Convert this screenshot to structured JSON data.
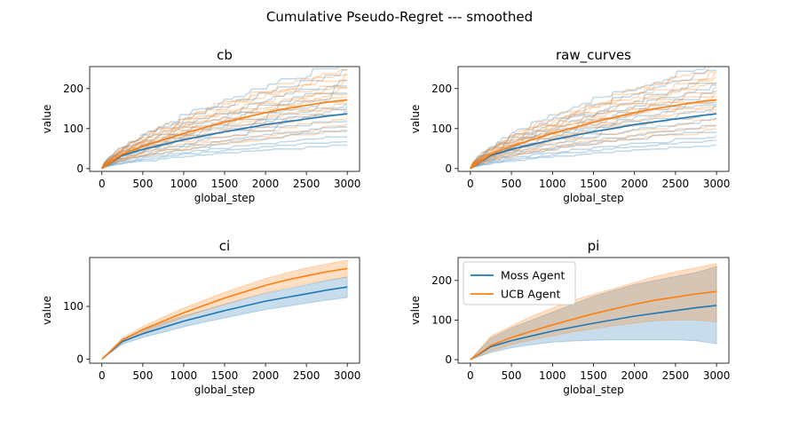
{
  "suptitle": "Cumulative Pseudo-Regret --- smoothed",
  "colors": {
    "Moss Agent": "#1f77b4",
    "UCB Agent": "#ff7f0e"
  },
  "chart_data": [
    {
      "type": "line",
      "title": "cb",
      "xlabel": "global_step",
      "ylabel": "value",
      "xlim": [
        -150,
        3150
      ],
      "ylim": [
        -7,
        255
      ],
      "xticks": [
        0,
        500,
        1000,
        1500,
        2000,
        2500,
        3000
      ],
      "yticks": [
        0,
        100,
        200
      ],
      "x": [
        0,
        250,
        500,
        750,
        1000,
        1250,
        1500,
        1750,
        2000,
        2250,
        2500,
        2750,
        3000
      ],
      "series": [
        {
          "name": "Moss Agent",
          "values": [
            0,
            33,
            48,
            60,
            72,
            82,
            92,
            101,
            110,
            117,
            124,
            131,
            137
          ]
        },
        {
          "name": "UCB Agent",
          "values": [
            0,
            36,
            56,
            72,
            88,
            102,
            116,
            128,
            140,
            150,
            158,
            166,
            172
          ]
        }
      ],
      "draws": [
        {
          "name": "Moss Agent",
          "finals": [
            245,
            225,
            205,
            190,
            175,
            160,
            150,
            140,
            130,
            115,
            100,
            90,
            75,
            65,
            55
          ]
        },
        {
          "name": "UCB Agent",
          "finals": [
            235,
            225,
            215,
            205,
            195,
            185,
            175,
            170,
            160,
            150,
            140,
            130,
            115,
            100,
            90
          ]
        }
      ]
    },
    {
      "type": "line",
      "title": "raw_curves",
      "xlabel": "global_step",
      "ylabel": "value",
      "xlim": [
        -150,
        3150
      ],
      "ylim": [
        -7,
        255
      ],
      "xticks": [
        0,
        500,
        1000,
        1500,
        2000,
        2500,
        3000
      ],
      "yticks": [
        0,
        100,
        200
      ],
      "x": [
        0,
        250,
        500,
        750,
        1000,
        1250,
        1500,
        1750,
        2000,
        2250,
        2500,
        2750,
        3000
      ],
      "series": [
        {
          "name": "Moss Agent",
          "values": [
            0,
            33,
            48,
            60,
            72,
            82,
            92,
            101,
            110,
            117,
            124,
            131,
            137
          ]
        },
        {
          "name": "UCB Agent",
          "values": [
            0,
            36,
            56,
            72,
            88,
            102,
            116,
            128,
            140,
            150,
            158,
            166,
            172
          ]
        }
      ],
      "draws": [
        {
          "name": "Moss Agent",
          "finals": [
            245,
            225,
            205,
            190,
            175,
            160,
            150,
            140,
            130,
            115,
            100,
            90,
            75,
            65,
            55
          ]
        },
        {
          "name": "UCB Agent",
          "finals": [
            235,
            225,
            215,
            205,
            195,
            185,
            175,
            170,
            160,
            150,
            140,
            130,
            115,
            100,
            90
          ]
        }
      ]
    },
    {
      "type": "area",
      "title": "ci",
      "xlabel": "global_step",
      "ylabel": "value",
      "xlim": [
        -150,
        3150
      ],
      "ylim": [
        -8,
        193
      ],
      "xticks": [
        0,
        500,
        1000,
        1500,
        2000,
        2500,
        3000
      ],
      "yticks": [
        0,
        100
      ],
      "x": [
        0,
        250,
        500,
        750,
        1000,
        1250,
        1500,
        1750,
        2000,
        2250,
        2500,
        2750,
        3000
      ],
      "series": [
        {
          "name": "Moss Agent",
          "values": [
            0,
            33,
            48,
            60,
            72,
            82,
            92,
            101,
            110,
            117,
            124,
            131,
            137
          ],
          "lower": [
            0,
            28,
            41,
            51,
            61,
            70,
            78,
            86,
            94,
            100,
            106,
            112,
            117
          ],
          "upper": [
            0,
            38,
            55,
            69,
            82,
            93,
            104,
            115,
            125,
            133,
            141,
            149,
            156
          ]
        },
        {
          "name": "UCB Agent",
          "values": [
            0,
            36,
            56,
            72,
            88,
            102,
            116,
            128,
            140,
            150,
            158,
            166,
            172
          ],
          "lower": [
            0,
            32,
            50,
            65,
            79,
            92,
            104,
            115,
            126,
            135,
            143,
            150,
            156
          ],
          "upper": [
            0,
            40,
            62,
            80,
            97,
            112,
            127,
            140,
            153,
            164,
            173,
            181,
            188
          ]
        }
      ]
    },
    {
      "type": "area",
      "title": "pi",
      "xlabel": "global_step",
      "ylabel": "value",
      "xlim": [
        -150,
        3150
      ],
      "ylim": [
        -9,
        258
      ],
      "xticks": [
        0,
        500,
        1000,
        1500,
        2000,
        2500,
        3000
      ],
      "yticks": [
        0,
        100,
        200
      ],
      "legend": "upper-left",
      "x": [
        0,
        250,
        500,
        750,
        1000,
        1250,
        1500,
        1750,
        2000,
        2250,
        2500,
        2750,
        3000
      ],
      "series": [
        {
          "name": "Moss Agent",
          "values": [
            0,
            33,
            48,
            60,
            72,
            82,
            92,
            101,
            110,
            117,
            124,
            131,
            137
          ],
          "lower": [
            0,
            18,
            30,
            38,
            44,
            47,
            49,
            50,
            50,
            50,
            50,
            48,
            40
          ],
          "upper": [
            0,
            55,
            80,
            100,
            120,
            140,
            160,
            175,
            190,
            200,
            210,
            220,
            235
          ]
        },
        {
          "name": "UCB Agent",
          "values": [
            0,
            36,
            56,
            72,
            88,
            102,
            116,
            128,
            140,
            150,
            158,
            166,
            172
          ],
          "lower": [
            0,
            22,
            38,
            50,
            60,
            70,
            78,
            86,
            92,
            98,
            100,
            100,
            95
          ],
          "upper": [
            0,
            60,
            85,
            110,
            130,
            150,
            165,
            180,
            195,
            210,
            222,
            232,
            243
          ]
        }
      ]
    }
  ]
}
